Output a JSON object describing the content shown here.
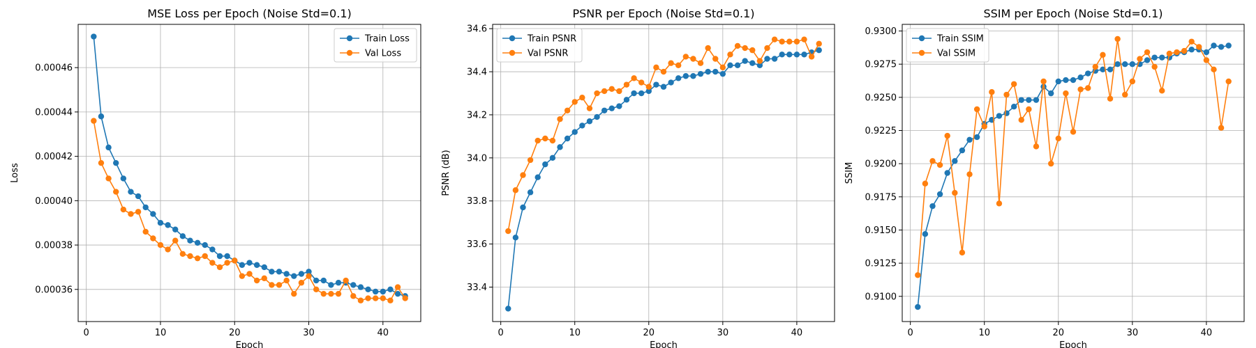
{
  "figure": {
    "title": ""
  },
  "chart_data": [
    {
      "type": "line",
      "title": "MSE Loss per Epoch (Noise Std=0.1)",
      "xlabel": "Epoch",
      "ylabel": "Loss",
      "xlim": [
        -1.1,
        45.1
      ],
      "ylim": [
        0.0003455,
        0.0004795
      ],
      "xticks": [
        0,
        10,
        20,
        30,
        40
      ],
      "xtick_labels": [
        "0",
        "10",
        "20",
        "30",
        "40"
      ],
      "yticks": [
        0.00036,
        0.00038,
        0.0004,
        0.00042,
        0.00044,
        0.00046
      ],
      "ytick_labels": [
        "0.00036",
        "0.00038",
        "0.00040",
        "0.00042",
        "0.00044",
        "0.00046"
      ],
      "grid": true,
      "legend_position": "top-right",
      "x": [
        1,
        2,
        3,
        4,
        5,
        6,
        7,
        8,
        9,
        10,
        11,
        12,
        13,
        14,
        15,
        16,
        17,
        18,
        19,
        20,
        21,
        22,
        23,
        24,
        25,
        26,
        27,
        28,
        29,
        30,
        31,
        32,
        33,
        34,
        35,
        36,
        37,
        38,
        39,
        40,
        41,
        42,
        43
      ],
      "series": [
        {
          "name": "Train Loss",
          "color": "#1f77b4",
          "values": [
            0.000474,
            0.000438,
            0.000424,
            0.000417,
            0.00041,
            0.000404,
            0.000402,
            0.000397,
            0.000394,
            0.00039,
            0.000389,
            0.000387,
            0.000384,
            0.000382,
            0.000381,
            0.00038,
            0.000378,
            0.000375,
            0.000375,
            0.000373,
            0.000371,
            0.000372,
            0.000371,
            0.00037,
            0.000368,
            0.000368,
            0.000367,
            0.000366,
            0.000367,
            0.000368,
            0.000364,
            0.000364,
            0.000362,
            0.000363,
            0.000363,
            0.000362,
            0.000361,
            0.00036,
            0.000359,
            0.000359,
            0.00036,
            0.000358,
            0.000357
          ]
        },
        {
          "name": "Val Loss",
          "color": "#ff7f0e",
          "values": [
            0.000436,
            0.000417,
            0.00041,
            0.000404,
            0.000396,
            0.000394,
            0.000395,
            0.000386,
            0.000383,
            0.00038,
            0.000378,
            0.000382,
            0.000376,
            0.000375,
            0.000374,
            0.000375,
            0.000372,
            0.00037,
            0.000372,
            0.000373,
            0.000366,
            0.000367,
            0.000364,
            0.000365,
            0.000362,
            0.000362,
            0.000364,
            0.000358,
            0.000363,
            0.000366,
            0.00036,
            0.000358,
            0.000358,
            0.000358,
            0.000364,
            0.000357,
            0.000355,
            0.000356,
            0.000356,
            0.000356,
            0.000355,
            0.000361,
            0.000356
          ]
        }
      ]
    },
    {
      "type": "line",
      "title": "PSNR per Epoch (Noise Std=0.1)",
      "xlabel": "Epoch",
      "ylabel": "PSNR (dB)",
      "xlim": [
        -1.1,
        45.1
      ],
      "ylim": [
        33.24,
        34.62
      ],
      "xticks": [
        0,
        10,
        20,
        30,
        40
      ],
      "xtick_labels": [
        "0",
        "10",
        "20",
        "30",
        "40"
      ],
      "yticks": [
        33.4,
        33.6,
        33.8,
        34.0,
        34.2,
        34.4,
        34.6
      ],
      "ytick_labels": [
        "33.4",
        "33.6",
        "33.8",
        "34.0",
        "34.2",
        "34.4",
        "34.6"
      ],
      "grid": true,
      "legend_position": "top-left",
      "x": [
        1,
        2,
        3,
        4,
        5,
        6,
        7,
        8,
        9,
        10,
        11,
        12,
        13,
        14,
        15,
        16,
        17,
        18,
        19,
        20,
        21,
        22,
        23,
        24,
        25,
        26,
        27,
        28,
        29,
        30,
        31,
        32,
        33,
        34,
        35,
        36,
        37,
        38,
        39,
        40,
        41,
        42,
        43
      ],
      "series": [
        {
          "name": "Train PSNR",
          "color": "#1f77b4",
          "values": [
            33.3,
            33.63,
            33.77,
            33.84,
            33.91,
            33.97,
            34.0,
            34.05,
            34.09,
            34.12,
            34.15,
            34.17,
            34.19,
            34.22,
            34.23,
            34.24,
            34.27,
            34.3,
            34.3,
            34.31,
            34.34,
            34.33,
            34.35,
            34.37,
            34.38,
            34.38,
            34.39,
            34.4,
            34.4,
            34.39,
            34.43,
            34.43,
            34.45,
            34.44,
            34.43,
            34.46,
            34.46,
            34.48,
            34.48,
            34.48,
            34.48,
            34.49,
            34.5
          ]
        },
        {
          "name": "Val PSNR",
          "color": "#ff7f0e",
          "values": [
            33.66,
            33.85,
            33.92,
            33.99,
            34.08,
            34.09,
            34.08,
            34.18,
            34.22,
            34.26,
            34.28,
            34.23,
            34.3,
            34.31,
            34.32,
            34.31,
            34.34,
            34.37,
            34.35,
            34.33,
            34.42,
            34.4,
            34.44,
            34.43,
            34.47,
            34.46,
            34.44,
            34.51,
            34.46,
            34.42,
            34.48,
            34.52,
            34.51,
            34.5,
            34.45,
            34.51,
            34.55,
            34.54,
            34.54,
            34.54,
            34.55,
            34.47,
            34.53
          ]
        }
      ]
    },
    {
      "type": "line",
      "title": "SSIM per Epoch (Noise Std=0.1)",
      "xlabel": "Epoch",
      "ylabel": "SSIM",
      "xlim": [
        -1.1,
        45.1
      ],
      "ylim": [
        0.9081,
        0.9305
      ],
      "xticks": [
        0,
        10,
        20,
        30,
        40
      ],
      "xtick_labels": [
        "0",
        "10",
        "20",
        "30",
        "40"
      ],
      "yticks": [
        0.91,
        0.9125,
        0.915,
        0.9175,
        0.92,
        0.9225,
        0.925,
        0.9275,
        0.93
      ],
      "ytick_labels": [
        "0.9100",
        "0.9125",
        "0.9150",
        "0.9175",
        "0.9200",
        "0.9225",
        "0.9250",
        "0.9275",
        "0.9300"
      ],
      "grid": true,
      "legend_position": "top-left",
      "x": [
        1,
        2,
        3,
        4,
        5,
        6,
        7,
        8,
        9,
        10,
        11,
        12,
        13,
        14,
        15,
        16,
        17,
        18,
        19,
        20,
        21,
        22,
        23,
        24,
        25,
        26,
        27,
        28,
        29,
        30,
        31,
        32,
        33,
        34,
        35,
        36,
        37,
        38,
        39,
        40,
        41,
        42,
        43
      ],
      "series": [
        {
          "name": "Train SSIM",
          "color": "#1f77b4",
          "values": [
            0.9092,
            0.9147,
            0.9168,
            0.9177,
            0.9193,
            0.9202,
            0.921,
            0.9218,
            0.922,
            0.923,
            0.9233,
            0.9236,
            0.9238,
            0.9243,
            0.9248,
            0.9248,
            0.9248,
            0.9258,
            0.9253,
            0.9262,
            0.9263,
            0.9263,
            0.9265,
            0.9268,
            0.927,
            0.9271,
            0.9271,
            0.9275,
            0.9275,
            0.9275,
            0.9275,
            0.9278,
            0.928,
            0.928,
            0.928,
            0.9283,
            0.9284,
            0.9286,
            0.9286,
            0.9284,
            0.9289,
            0.9288,
            0.9289
          ]
        },
        {
          "name": "Val SSIM",
          "color": "#ff7f0e",
          "values": [
            0.9116,
            0.9185,
            0.9202,
            0.9199,
            0.9221,
            0.9178,
            0.9133,
            0.9192,
            0.9241,
            0.9228,
            0.9254,
            0.917,
            0.9252,
            0.926,
            0.9233,
            0.9241,
            0.9213,
            0.9262,
            0.92,
            0.9219,
            0.9253,
            0.9224,
            0.9256,
            0.9257,
            0.9273,
            0.9282,
            0.9249,
            0.9294,
            0.9252,
            0.9262,
            0.9279,
            0.9284,
            0.9273,
            0.9255,
            0.9283,
            0.9284,
            0.9285,
            0.9292,
            0.9288,
            0.9278,
            0.9271,
            0.9227,
            0.9262
          ]
        }
      ]
    }
  ]
}
